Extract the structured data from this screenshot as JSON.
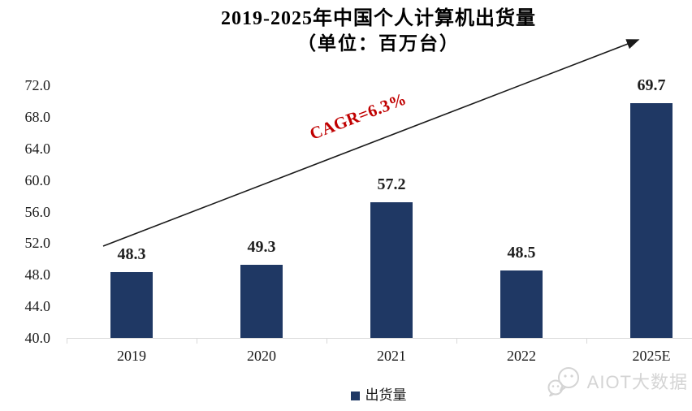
{
  "chart_data": {
    "type": "bar",
    "title": "2019-2025年中国个人计算机出货量",
    "subtitle": "（单位：百万台）",
    "categories": [
      "2019",
      "2020",
      "2021",
      "2022",
      "2025E"
    ],
    "series": [
      {
        "name": "出货量",
        "values": [
          48.3,
          49.3,
          57.2,
          48.5,
          69.7
        ]
      }
    ],
    "ytick_labels": [
      "40.0",
      "44.0",
      "48.0",
      "52.0",
      "56.0",
      "60.0",
      "64.0",
      "68.0",
      "72.0"
    ],
    "ylim": [
      40.0,
      72.0
    ],
    "ytick_step": 4.0,
    "xlabel": "",
    "ylabel": "",
    "grid": false,
    "legend_position": "bottom-center",
    "bar_color": "#1F3864",
    "annotation": {
      "text": "CAGR=6.3%",
      "color": "#C00000"
    }
  },
  "legend": {
    "swatch_color": "#1F3864"
  },
  "watermark": {
    "text": "AIOT大数据",
    "icon": "wechat-icon",
    "color": "#d4d4d4"
  },
  "colors": {
    "bar": "#1F3864",
    "axis_line": "#D9D9D9",
    "annotation_red": "#C00000",
    "title_text": "#000000",
    "axis_text": "#1a1a1a"
  }
}
